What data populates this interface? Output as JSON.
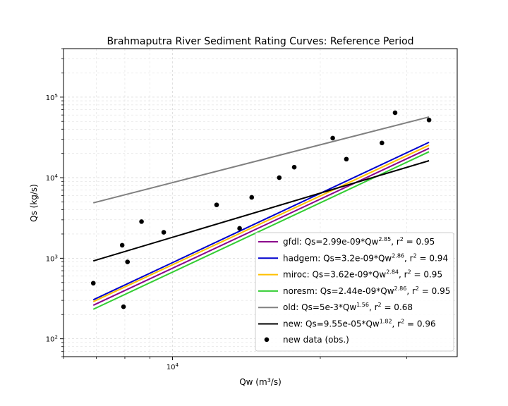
{
  "chart_data": {
    "type": "scatter",
    "title": "Brahmaputra River Sediment Rating Curves: Reference Period",
    "xlabel": "Qw (m³/s)",
    "ylabel": "Qs (kg/s)",
    "xscale": "log",
    "yscale": "log",
    "xlim": [
      6000,
      38000
    ],
    "ylim": [
      60,
      400000
    ],
    "grid": true,
    "legend_position": "lower right",
    "x_ticks": [
      {
        "value": 10000,
        "mantissa": "10",
        "exponent": "4"
      }
    ],
    "y_ticks": [
      {
        "value": 100,
        "mantissa": "10",
        "exponent": "2"
      },
      {
        "value": 1000,
        "mantissa": "10",
        "exponent": "3"
      },
      {
        "value": 10000,
        "mantissa": "10",
        "exponent": "4"
      },
      {
        "value": 100000,
        "mantissa": "10",
        "exponent": "5"
      }
    ],
    "fit_range": [
      6900,
      33300
    ],
    "series": [
      {
        "name": "gfdl",
        "prefix": "gfdl: Qs=2.99e-09*Qw",
        "exponent_text": "2.85",
        "r2_text": "0.95",
        "coef": 2.99e-09,
        "exponent": 2.85,
        "color": "#8b008b"
      },
      {
        "name": "hadgem",
        "prefix": "hadgem: Qs=3.2e-09*Qw",
        "exponent_text": "2.86",
        "r2_text": "0.94",
        "coef": 3.2e-09,
        "exponent": 2.86,
        "color": "#0000cd"
      },
      {
        "name": "miroc",
        "prefix": "miroc: Qs=3.62e-09*Qw",
        "exponent_text": "2.84",
        "r2_text": "0.95",
        "coef": 3.62e-09,
        "exponent": 2.84,
        "color": "#ffc000"
      },
      {
        "name": "noresm",
        "prefix": "noresm: Qs=2.44e-09*Qw",
        "exponent_text": "2.86",
        "r2_text": "0.95",
        "coef": 2.44e-09,
        "exponent": 2.86,
        "color": "#32cd32"
      },
      {
        "name": "old",
        "prefix": "old: Qs=5e-3*Qw",
        "exponent_text": "1.56",
        "r2_text": "0.68",
        "coef": 0.005,
        "exponent": 1.56,
        "color": "#808080"
      },
      {
        "name": "new",
        "prefix": "new: Qs=9.55e-05*Qw",
        "exponent_text": "1.82",
        "r2_text": "0.96",
        "coef": 9.55e-05,
        "exponent": 1.82,
        "color": "#000000"
      }
    ],
    "observations": {
      "name": "new data (obs.)",
      "color": "#000000",
      "points": [
        [
          6900,
          490
        ],
        [
          7950,
          250
        ],
        [
          7900,
          1450
        ],
        [
          8100,
          900
        ],
        [
          8650,
          2850
        ],
        [
          9600,
          2100
        ],
        [
          12300,
          4600
        ],
        [
          13700,
          2350
        ],
        [
          14500,
          5700
        ],
        [
          16500,
          10000
        ],
        [
          17700,
          13500
        ],
        [
          21200,
          31000
        ],
        [
          22600,
          17000
        ],
        [
          26700,
          27000
        ],
        [
          28400,
          64000
        ],
        [
          33300,
          52000
        ]
      ]
    }
  }
}
